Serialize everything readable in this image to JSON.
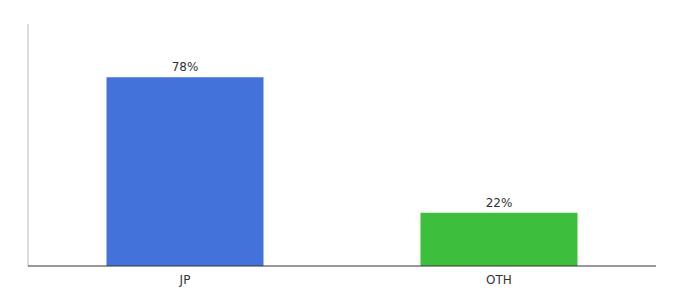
{
  "chart_data": {
    "type": "bar",
    "categories": [
      "JP",
      "OTH"
    ],
    "values": [
      78,
      22
    ],
    "value_labels": [
      "78%",
      "22%"
    ],
    "colors": [
      "#4472DB",
      "#3DBF3D"
    ],
    "ylim": [
      0,
      100
    ],
    "tick_labels": "x",
    "data_labels": true
  }
}
